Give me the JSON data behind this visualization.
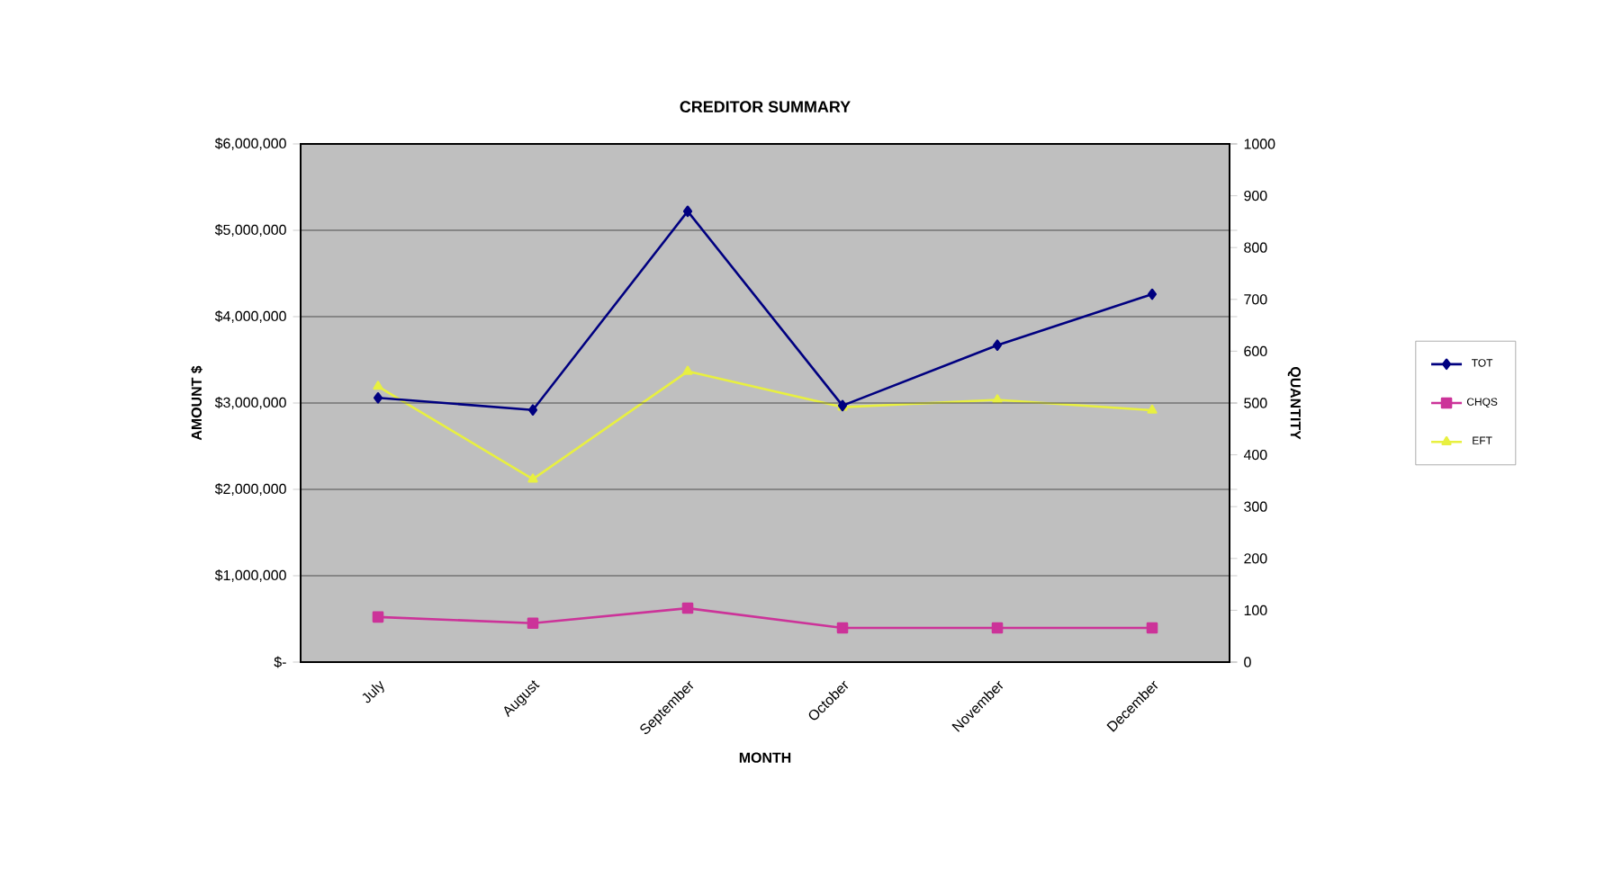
{
  "chart_data": {
    "type": "line",
    "title": "CREDITOR SUMMARY",
    "xlabel": "MONTH",
    "ylabel": "AMOUNT $",
    "y2label": "QUANTITY",
    "categories": [
      "July",
      "August",
      "September",
      "October",
      "November",
      "December"
    ],
    "series": [
      {
        "name": "TOT",
        "color": "#000080",
        "values": [
          3060000,
          2920000,
          5220000,
          2970000,
          3670000,
          4260000
        ],
        "marker": "diamond"
      },
      {
        "name": "CHQS",
        "color": "#cc3399",
        "values": [
          87,
          75,
          104,
          66,
          66,
          66
        ],
        "axis": "y2",
        "marker": "square"
      },
      {
        "name": "EFT",
        "color": "#e8f040",
        "values": [
          532,
          353,
          561,
          492,
          506,
          486
        ],
        "axis": "y2",
        "marker": "triangle"
      }
    ],
    "ylim": [
      0,
      6000000
    ],
    "yticks": [
      {
        "value": 0,
        "label": "$-"
      },
      {
        "value": 1000000,
        "label": "$1,000,000"
      },
      {
        "value": 2000000,
        "label": "$2,000,000"
      },
      {
        "value": 3000000,
        "label": "$3,000,000"
      },
      {
        "value": 4000000,
        "label": "$4,000,000"
      },
      {
        "value": 5000000,
        "label": "$5,000,000"
      },
      {
        "value": 6000000,
        "label": "$6,000,000"
      }
    ],
    "y2lim": [
      0,
      1000
    ],
    "y2ticks": [
      0,
      100,
      200,
      300,
      400,
      500,
      600,
      700,
      800,
      900,
      1000
    ],
    "grid": "y",
    "legend": "right"
  }
}
